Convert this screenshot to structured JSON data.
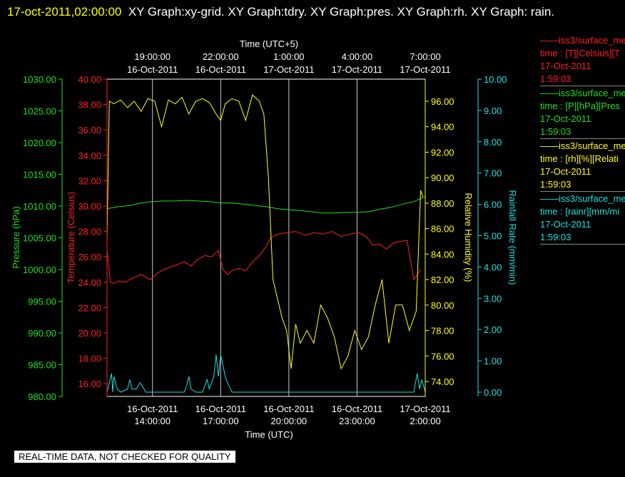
{
  "header": {
    "timestamp": "17-oct-2011,02:00:00",
    "titles": "XY Graph:xy-grid.  XY Graph:tdry.  XY Graph:pres.  XY Graph:rh.  XY Graph: rain."
  },
  "colors": {
    "temperature": "#ff2020",
    "pressure": "#20e020",
    "humidity": "#ffff20",
    "rainfall": "#20e0e0",
    "grid": "#c8c8c8",
    "axis": "#ffffff"
  },
  "legend": [
    {
      "source": "iss3/surface_me",
      "label": "time : [T][Celsius][T",
      "date": "17-Oct-2011",
      "time": "1:59:03",
      "color": "#ff2020"
    },
    {
      "source": "iss3/surface_me",
      "label": "time : [P][hPa][Pres",
      "date": "17-Oct-2011",
      "time": "1:59:03",
      "color": "#20e020"
    },
    {
      "source": "iss3/surface_me",
      "label": "time : [rh][%][Relati",
      "date": "17-Oct-2011",
      "time": "1:59:03",
      "color": "#ffff20"
    },
    {
      "source": "iss3/surface_me",
      "label": "time : [rainr][mm/mi",
      "date": "17-Oct-2011",
      "time": "1:59:03",
      "color": "#20e0e0"
    }
  ],
  "notice": "REAL-TIME DATA, NOT CHECKED FOR QUALITY",
  "chart_data": {
    "type": "line",
    "grid": true,
    "x_bottom": {
      "label": "Time (UTC)",
      "range": [
        "16-Oct-2011 12:00:00",
        "17-Oct-2011 02:00:00"
      ],
      "ticks": [
        {
          "date": "16-Oct-2011",
          "time": "14:00:00"
        },
        {
          "date": "16-Oct-2011",
          "time": "17:00:00"
        },
        {
          "date": "16-Oct-2011",
          "time": "20:00:00"
        },
        {
          "date": "16-Oct-2011",
          "time": "23:00:00"
        },
        {
          "date": "17-Oct-2011",
          "time": "2:00:00"
        }
      ]
    },
    "x_top": {
      "label": "Time (UTC+5)",
      "ticks": [
        {
          "time": "19:00:00",
          "date": "16-Oct-2011"
        },
        {
          "time": "22:00:00",
          "date": "16-Oct-2011"
        },
        {
          "time": "1:00:00",
          "date": "17-Oct-2011"
        },
        {
          "time": "4:00:00",
          "date": "17-Oct-2011"
        },
        {
          "time": "7:00:00",
          "date": "17-Oct-2011"
        }
      ]
    },
    "axes": {
      "pressure": {
        "label": "Pressure (hPa)",
        "range": [
          980,
          1030
        ],
        "ticks": [
          "980.00",
          "985.00",
          "990.00",
          "995.00",
          "1000.00",
          "1005.00",
          "1010.00",
          "1015.00",
          "1020.00",
          "1025.00",
          "1030.00"
        ]
      },
      "temperature": {
        "label": "Temperature (Celsius)",
        "range": [
          15,
          40
        ],
        "ticks": [
          "16.00",
          "18.00",
          "20.00",
          "22.00",
          "24.00",
          "26.00",
          "28.00",
          "30.00",
          "32.00",
          "34.00",
          "36.00",
          "38.00",
          "40.00"
        ]
      },
      "humidity": {
        "label": "Relative Humidity (%)",
        "range": [
          72.5,
          97.5
        ],
        "ticks": [
          "74.00",
          "76.00",
          "78.00",
          "80.00",
          "82.00",
          "84.00",
          "86.00",
          "88.00",
          "90.00",
          "92.00",
          "94.00",
          "96.00"
        ]
      },
      "rainfall": {
        "label": "Rainfall Rate (mm/min)",
        "range": [
          -0.2,
          10
        ],
        "ticks": [
          "0.00",
          "1.00",
          "2.00",
          "3.00",
          "4.00",
          "5.00",
          "6.00",
          "7.00",
          "8.00",
          "9.00",
          "10.00"
        ]
      }
    },
    "hours_since_start_note_removed": null,
    "series": [
      {
        "name": "Temperature",
        "axis": "temperature",
        "x": [
          12.0,
          12.15,
          12.3,
          12.5,
          12.8,
          13.1,
          13.5,
          13.9,
          14.2,
          14.5,
          14.8,
          15.1,
          15.4,
          15.7,
          16.0,
          16.3,
          16.6,
          16.9,
          17.1,
          17.3,
          17.5,
          17.8,
          18.1,
          18.4,
          18.7,
          19.0,
          19.2,
          19.5,
          19.9,
          20.3,
          20.7,
          21.1,
          21.5,
          21.9,
          22.3,
          22.7,
          23.1,
          23.4,
          23.7,
          24.0,
          24.3,
          24.6,
          24.9,
          25.2,
          25.5,
          25.8
        ],
        "values": [
          26.5,
          24.0,
          23.9,
          24.1,
          24.0,
          24.3,
          24.6,
          24.2,
          24.7,
          25.0,
          25.2,
          25.4,
          25.6,
          25.3,
          25.8,
          26.1,
          26.0,
          26.5,
          25.0,
          24.6,
          24.9,
          25.1,
          24.9,
          25.6,
          26.1,
          26.8,
          27.5,
          27.8,
          27.9,
          28.0,
          27.7,
          27.9,
          27.8,
          28.0,
          27.6,
          27.8,
          27.9,
          27.6,
          26.9,
          27.0,
          26.6,
          27.1,
          27.2,
          27.3,
          24.2,
          25.0
        ]
      },
      {
        "name": "Pressure",
        "axis": "pressure",
        "x": [
          12.0,
          12.5,
          13.0,
          13.5,
          14.0,
          14.5,
          15.0,
          15.5,
          16.0,
          16.5,
          17.0,
          17.5,
          18.0,
          18.5,
          19.0,
          19.5,
          20.0,
          20.5,
          21.0,
          21.5,
          22.0,
          22.5,
          23.0,
          23.5,
          24.0,
          24.5,
          25.0,
          25.5,
          26.0
        ],
        "values": [
          1009.6,
          1009.9,
          1010.1,
          1010.5,
          1010.7,
          1010.8,
          1010.8,
          1010.9,
          1010.8,
          1010.7,
          1010.5,
          1010.5,
          1010.3,
          1010.1,
          1009.9,
          1009.6,
          1009.4,
          1009.3,
          1009.1,
          1008.9,
          1008.9,
          1009.0,
          1009.0,
          1009.1,
          1009.5,
          1009.8,
          1010.3,
          1010.7,
          1011.5
        ]
      },
      {
        "name": "Relative Humidity",
        "axis": "humidity",
        "x": [
          12.0,
          12.1,
          12.3,
          12.6,
          12.9,
          13.2,
          13.5,
          13.8,
          14.1,
          14.4,
          14.7,
          15.0,
          15.3,
          15.6,
          15.9,
          16.2,
          16.5,
          16.8,
          17.0,
          17.2,
          17.5,
          17.8,
          18.1,
          18.4,
          18.7,
          18.9,
          19.1,
          19.3,
          19.5,
          19.7,
          19.9,
          20.1,
          20.3,
          20.5,
          20.8,
          21.1,
          21.4,
          21.7,
          22.0,
          22.3,
          22.6,
          22.9,
          23.2,
          23.5,
          23.8,
          24.1,
          24.4,
          24.7,
          25.0,
          25.3,
          25.6,
          25.8,
          25.9
        ],
        "values": [
          85.0,
          96.0,
          95.8,
          96.1,
          95.5,
          96.0,
          95.2,
          96.2,
          96.0,
          94.0,
          96.1,
          95.8,
          96.3,
          95.0,
          96.0,
          96.2,
          95.9,
          95.0,
          94.5,
          95.8,
          96.2,
          96.0,
          94.5,
          96.5,
          96.0,
          95.0,
          90.0,
          82.0,
          80.5,
          79.0,
          78.0,
          75.0,
          78.5,
          77.0,
          78.0,
          77.0,
          80.0,
          79.0,
          77.5,
          75.0,
          76.0,
          78.0,
          76.5,
          77.5,
          80.0,
          82.0,
          77.0,
          80.0,
          80.0,
          78.0,
          79.5,
          89.0,
          88.5
        ]
      },
      {
        "name": "Rainfall Rate",
        "axis": "rainfall",
        "x": [
          12.0,
          12.2,
          12.25,
          12.3,
          12.45,
          12.6,
          12.9,
          13.0,
          13.1,
          13.3,
          13.45,
          13.55,
          13.7,
          13.9,
          14.0,
          14.5,
          15.0,
          15.4,
          15.5,
          15.6,
          15.7,
          15.9,
          16.0,
          16.2,
          16.3,
          16.4,
          16.5,
          16.7,
          16.8,
          16.9,
          17.0,
          17.2,
          17.3,
          17.5,
          17.8,
          18.0,
          19.5,
          21.0,
          23.0,
          24.0,
          25.5,
          25.65,
          25.75,
          25.85,
          26.0
        ],
        "values": [
          0.0,
          0.6,
          0.0,
          0.5,
          0.1,
          0.0,
          0.1,
          0.4,
          0.1,
          0.1,
          0.3,
          0.2,
          0.0,
          0.0,
          0.0,
          0.0,
          0.0,
          0.0,
          0.2,
          0.5,
          0.1,
          0.0,
          0.0,
          0.0,
          0.2,
          0.4,
          0.1,
          0.5,
          1.2,
          0.5,
          1.2,
          0.5,
          0.3,
          0.0,
          0.0,
          0.0,
          0.0,
          0.0,
          0.0,
          0.0,
          0.0,
          0.6,
          0.1,
          0.4,
          0.0
        ]
      }
    ]
  }
}
